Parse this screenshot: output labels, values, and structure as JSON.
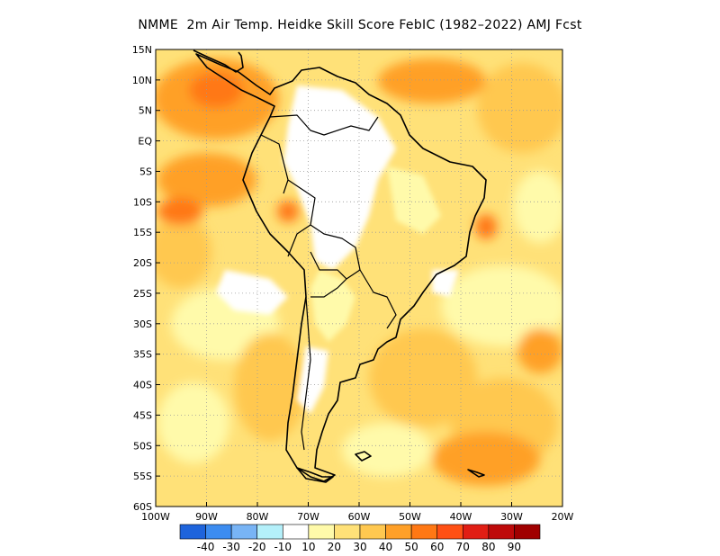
{
  "title": "NMME  2m Air Temp. Heidke Skill Score FebIC (1982–2022) AMJ Fcst",
  "map": {
    "lon_range": [
      -100,
      -20
    ],
    "lat_range": [
      -60,
      15
    ],
    "lat_ticks": [
      {
        "value": 15,
        "label": "15N"
      },
      {
        "value": 10,
        "label": "10N"
      },
      {
        "value": 5,
        "label": "5N"
      },
      {
        "value": 0,
        "label": "EQ"
      },
      {
        "value": -5,
        "label": "5S"
      },
      {
        "value": -10,
        "label": "10S"
      },
      {
        "value": -15,
        "label": "15S"
      },
      {
        "value": -20,
        "label": "20S"
      },
      {
        "value": -25,
        "label": "25S"
      },
      {
        "value": -30,
        "label": "30S"
      },
      {
        "value": -35,
        "label": "35S"
      },
      {
        "value": -40,
        "label": "40S"
      },
      {
        "value": -45,
        "label": "45S"
      },
      {
        "value": -50,
        "label": "50S"
      },
      {
        "value": -55,
        "label": "55S"
      },
      {
        "value": -60,
        "label": "60S"
      }
    ],
    "lon_ticks": [
      {
        "value": -100,
        "label": "100W"
      },
      {
        "value": -90,
        "label": "90W"
      },
      {
        "value": -80,
        "label": "80W"
      },
      {
        "value": -70,
        "label": "70W"
      },
      {
        "value": -60,
        "label": "60W"
      },
      {
        "value": -50,
        "label": "50W"
      },
      {
        "value": -40,
        "label": "40W"
      },
      {
        "value": -30,
        "label": "30W"
      },
      {
        "value": -20,
        "label": "20W"
      }
    ],
    "grid": "dotted"
  },
  "legend": {
    "colors": [
      "#1e64dc",
      "#3c8cf0",
      "#78b4f5",
      "#b4f0fa",
      "#ffffff",
      "#fffaaa",
      "#ffe178",
      "#ffc850",
      "#ffa028",
      "#ff7814",
      "#ff5014",
      "#e11e14",
      "#be0a0a",
      "#a00000"
    ],
    "labels": [
      "-40",
      "-30",
      "-20",
      "-10",
      "10",
      "20",
      "30",
      "40",
      "50",
      "60",
      "70",
      "80",
      "90"
    ]
  },
  "field_colors": {
    "ocean_base": "#ffe178",
    "light": "#fffaaa",
    "mid": "#ffc850",
    "strong": "#ffa028",
    "hot": "#ff7814",
    "neutral": "#ffffff",
    "coast": "#000000"
  }
}
